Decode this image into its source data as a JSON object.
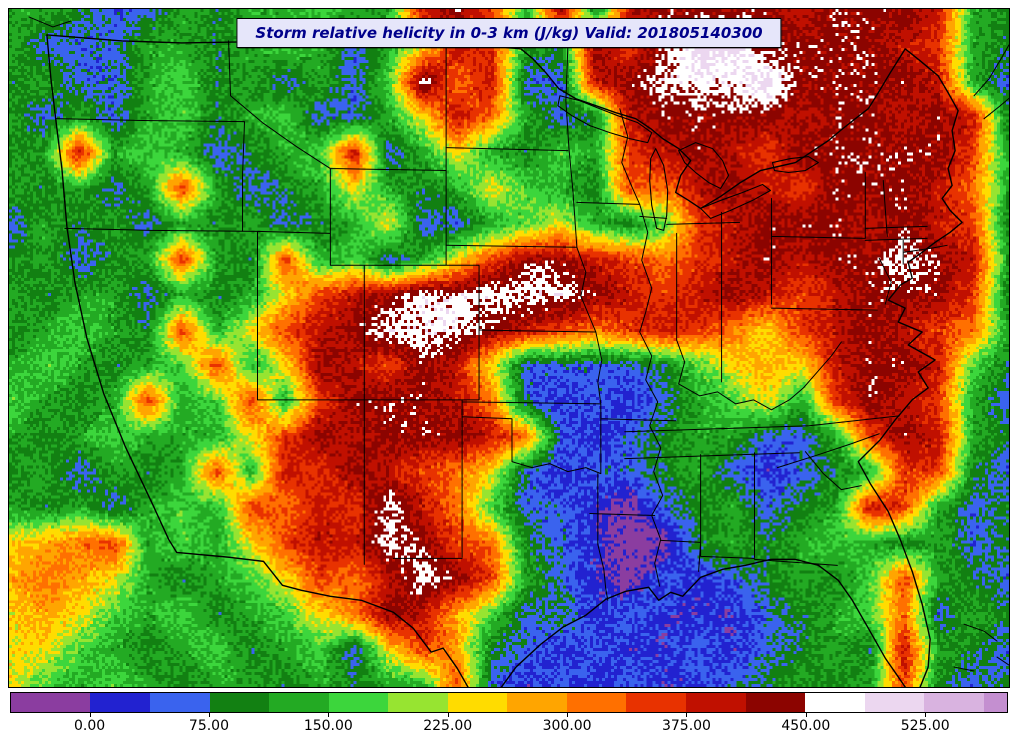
{
  "chart_data": {
    "type": "heatmap",
    "title": "Storm relative helicity in 0-3 km (J/kg) Valid: 201805140300",
    "variable": "Storm relative helicity in 0-3 km",
    "units": "J/kg",
    "valid_time": "201805140300",
    "region": "Continental United States",
    "legend_position": "bottom",
    "colorbar": {
      "domain_min": -50,
      "domain_max": 577,
      "tick_values": [
        0,
        75,
        150,
        225,
        300,
        375,
        450,
        525
      ],
      "tick_labels": [
        "0.00",
        "75.00",
        "150.00",
        "225.00",
        "300.00",
        "375.00",
        "450.00",
        "525.00"
      ],
      "segments": [
        {
          "from": -50,
          "to": 0,
          "color": "#8b3da0"
        },
        {
          "from": 0,
          "to": 37.5,
          "color": "#2222d0"
        },
        {
          "from": 37.5,
          "to": 75,
          "color": "#3a63ee"
        },
        {
          "from": 75,
          "to": 112.5,
          "color": "#128012"
        },
        {
          "from": 112.5,
          "to": 150,
          "color": "#23aa23"
        },
        {
          "from": 150,
          "to": 187.5,
          "color": "#3cd63c"
        },
        {
          "from": 187.5,
          "to": 225,
          "color": "#97e431"
        },
        {
          "from": 225,
          "to": 262.5,
          "color": "#ffdc00"
        },
        {
          "from": 262.5,
          "to": 300,
          "color": "#ffa500"
        },
        {
          "from": 300,
          "to": 337.5,
          "color": "#ff7000"
        },
        {
          "from": 337.5,
          "to": 375,
          "color": "#e83200"
        },
        {
          "from": 375,
          "to": 412.5,
          "color": "#c01000"
        },
        {
          "from": 412.5,
          "to": 450,
          "color": "#8c0400"
        },
        {
          "from": 450,
          "to": 487.5,
          "color": "#ffffff"
        },
        {
          "from": 487.5,
          "to": 525,
          "color": "#ecd7f0"
        },
        {
          "from": 525,
          "to": 562.5,
          "color": "#d9b3e0"
        },
        {
          "from": 562.5,
          "to": 577,
          "color": "#c48fd0"
        }
      ]
    },
    "grid": {
      "note": "coarse estimate of the helicity field (J/kg), row-major from map top-left",
      "cols": 30,
      "rows": 20,
      "values": [
        [
          130,
          130,
          93,
          55,
          55,
          130,
          93,
          130,
          130,
          168,
          130,
          130,
          393,
          430,
          355,
          130,
          430,
          93,
          393,
          430,
          430,
          430,
          430,
          393,
          430,
          430,
          430,
          393,
          130,
          93
        ],
        [
          130,
          55,
          55,
          55,
          130,
          130,
          93,
          130,
          168,
          130,
          55,
          130,
          243,
          393,
          355,
          130,
          93,
          430,
          355,
          430,
          505,
          505,
          430,
          430,
          430,
          430,
          393,
          355,
          130,
          93
        ],
        [
          93,
          130,
          55,
          55,
          130,
          168,
          93,
          130,
          55,
          130,
          55,
          168,
          468,
          318,
          393,
          55,
          55,
          393,
          430,
          468,
          468,
          468,
          505,
          430,
          430,
          430,
          430,
          393,
          130,
          55
        ],
        [
          130,
          55,
          130,
          55,
          130,
          168,
          93,
          130,
          168,
          55,
          55,
          130,
          243,
          393,
          318,
          130,
          55,
          93,
          393,
          430,
          430,
          430,
          430,
          393,
          430,
          430,
          393,
          430,
          393,
          93
        ],
        [
          93,
          130,
          393,
          130,
          168,
          130,
          55,
          93,
          130,
          168,
          393,
          55,
          130,
          243,
          130,
          93,
          168,
          130,
          355,
          393,
          430,
          393,
          355,
          430,
          430,
          430,
          430,
          430,
          355,
          130
        ],
        [
          130,
          93,
          130,
          55,
          130,
          355,
          130,
          55,
          93,
          130,
          243,
          130,
          93,
          130,
          243,
          168,
          130,
          93,
          355,
          318,
          393,
          430,
          393,
          355,
          430,
          430,
          430,
          393,
          318,
          130
        ],
        [
          55,
          130,
          93,
          130,
          55,
          130,
          93,
          130,
          55,
          93,
          130,
          243,
          55,
          55,
          130,
          168,
          243,
          130,
          93,
          168,
          355,
          393,
          430,
          430,
          430,
          393,
          430,
          393,
          355,
          93
        ],
        [
          93,
          130,
          55,
          93,
          130,
          355,
          130,
          93,
          355,
          130,
          168,
          55,
          130,
          243,
          355,
          430,
          430,
          393,
          355,
          318,
          355,
          393,
          430,
          393,
          430,
          430,
          468,
          430,
          393,
          130
        ],
        [
          130,
          93,
          130,
          130,
          55,
          130,
          93,
          130,
          243,
          355,
          393,
          430,
          468,
          468,
          468,
          468,
          468,
          430,
          393,
          355,
          393,
          430,
          393,
          355,
          393,
          430,
          430,
          430,
          355,
          93
        ],
        [
          93,
          130,
          168,
          130,
          93,
          355,
          130,
          243,
          355,
          393,
          430,
          468,
          468,
          468,
          430,
          393,
          355,
          318,
          355,
          393,
          355,
          318,
          243,
          355,
          393,
          430,
          393,
          355,
          318,
          130
        ],
        [
          130,
          168,
          130,
          93,
          130,
          168,
          355,
          130,
          243,
          430,
          393,
          355,
          430,
          393,
          243,
          55,
          55,
          55,
          55,
          93,
          168,
          243,
          280,
          243,
          393,
          430,
          430,
          393,
          168,
          93
        ],
        [
          168,
          130,
          93,
          130,
          355,
          130,
          168,
          355,
          130,
          355,
          430,
          430,
          430,
          393,
          318,
          55,
          20,
          55,
          20,
          55,
          130,
          168,
          243,
          130,
          355,
          430,
          393,
          355,
          130,
          55
        ],
        [
          130,
          93,
          130,
          168,
          130,
          130,
          130,
          243,
          355,
          430,
          393,
          430,
          430,
          430,
          393,
          318,
          55,
          20,
          55,
          93,
          130,
          130,
          55,
          55,
          130,
          355,
          430,
          393,
          130,
          93
        ],
        [
          93,
          130,
          55,
          130,
          93,
          130,
          355,
          130,
          393,
          355,
          430,
          393,
          355,
          318,
          243,
          55,
          20,
          55,
          55,
          93,
          130,
          55,
          20,
          55,
          93,
          130,
          355,
          355,
          93,
          55
        ],
        [
          130,
          93,
          130,
          55,
          130,
          168,
          130,
          355,
          318,
          393,
          355,
          468,
          393,
          318,
          168,
          55,
          55,
          20,
          -25,
          55,
          93,
          130,
          55,
          93,
          130,
          393,
          355,
          130,
          55,
          93
        ],
        [
          243,
          280,
          318,
          355,
          130,
          168,
          130,
          243,
          355,
          393,
          393,
          468,
          430,
          355,
          318,
          93,
          55,
          20,
          -25,
          -25,
          93,
          130,
          93,
          130,
          168,
          130,
          93,
          130,
          55,
          93
        ],
        [
          280,
          318,
          280,
          243,
          130,
          93,
          130,
          168,
          243,
          355,
          318,
          393,
          468,
          430,
          355,
          130,
          55,
          20,
          -25,
          55,
          20,
          55,
          93,
          130,
          93,
          168,
          355,
          130,
          93,
          55
        ],
        [
          243,
          280,
          243,
          168,
          130,
          168,
          93,
          130,
          168,
          243,
          318,
          430,
          393,
          280,
          168,
          55,
          93,
          20,
          55,
          20,
          20,
          20,
          55,
          93,
          130,
          168,
          318,
          55,
          130,
          93
        ],
        [
          243,
          243,
          168,
          130,
          93,
          130,
          168,
          93,
          130,
          168,
          55,
          243,
          355,
          280,
          93,
          55,
          20,
          55,
          20,
          20,
          55,
          20,
          55,
          93,
          130,
          93,
          393,
          130,
          93,
          55
        ],
        [
          243,
          168,
          130,
          168,
          130,
          93,
          130,
          130,
          93,
          130,
          93,
          130,
          130,
          355,
          55,
          20,
          55,
          20,
          55,
          20,
          20,
          55,
          93,
          130,
          93,
          130,
          355,
          93,
          55,
          93
        ]
      ]
    }
  }
}
